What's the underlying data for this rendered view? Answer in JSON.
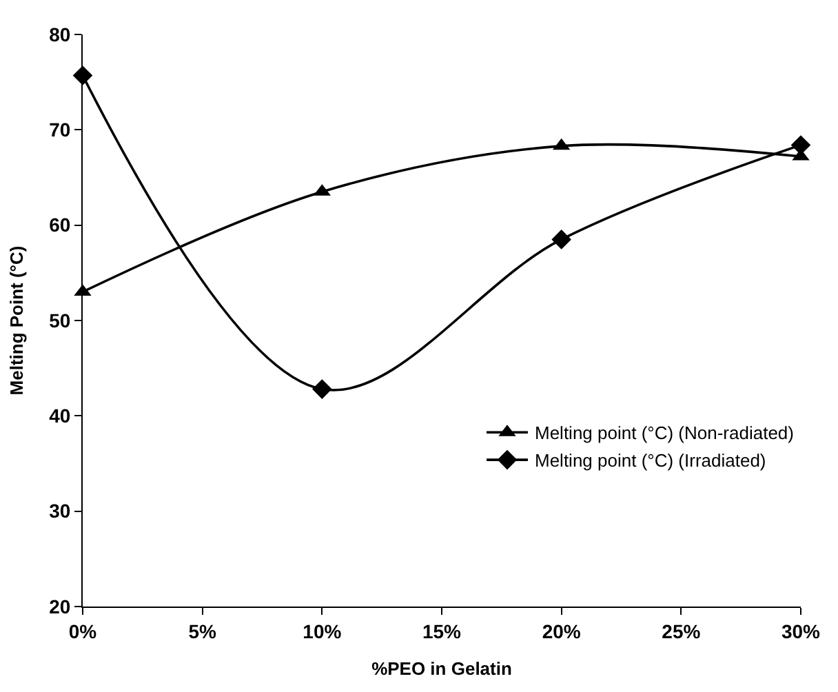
{
  "chart_data": {
    "type": "line",
    "xlabel": "%PEO in Gelatin",
    "ylabel": "Melting Point (°C)",
    "x": [
      0,
      10,
      20,
      30
    ],
    "series": [
      {
        "name": "Melting point (°C) (Non-radiated)",
        "color": "#000000",
        "marker": "triangle",
        "values": [
          53,
          63.5,
          68.3,
          67.2
        ]
      },
      {
        "name": "Melting point (°C) (Irradiated)",
        "color": "#000000",
        "marker": "diamond",
        "values": [
          75.7,
          42.8,
          58.5,
          68.4
        ]
      }
    ],
    "xlim": [
      0,
      30
    ],
    "xticks": [
      {
        "value": 0,
        "label": "0%"
      },
      {
        "value": 5,
        "label": "5%"
      },
      {
        "value": 10,
        "label": "10%"
      },
      {
        "value": 15,
        "label": "15%"
      },
      {
        "value": 20,
        "label": "20%"
      },
      {
        "value": 25,
        "label": "25%"
      },
      {
        "value": 30,
        "label": "30%"
      }
    ],
    "ylim": [
      20,
      80
    ],
    "yticks": [
      20,
      30,
      40,
      50,
      60,
      70,
      80
    ],
    "legend": "bottom right",
    "line_style": "solid"
  }
}
